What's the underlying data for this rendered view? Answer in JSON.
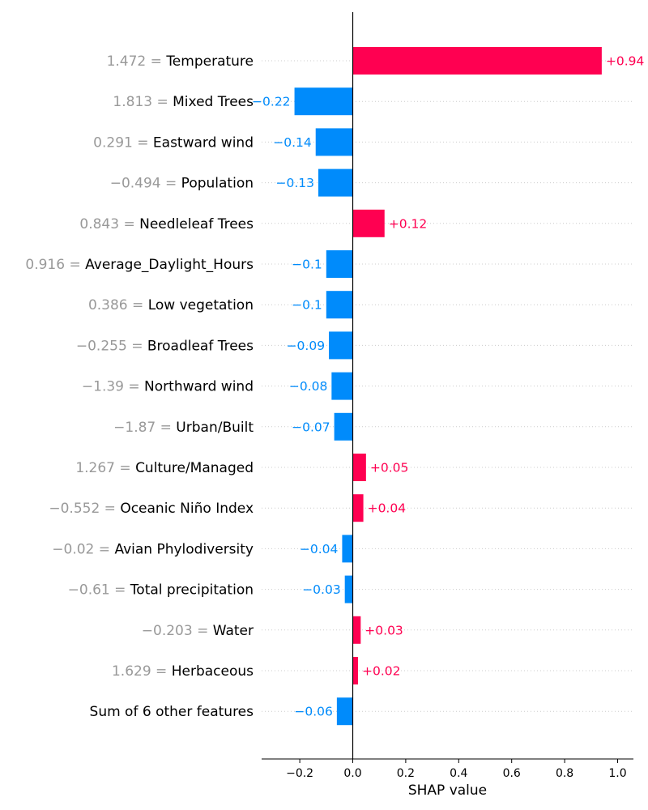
{
  "chart_data": {
    "type": "bar",
    "orientation": "horizontal",
    "xlabel": "SHAP value",
    "xlim": [
      -0.34,
      1.06
    ],
    "xticks": [
      -0.2,
      0.0,
      0.2,
      0.4,
      0.6,
      0.8,
      1.0
    ],
    "xtick_labels": [
      "−0.2",
      "0.0",
      "0.2",
      "0.4",
      "0.6",
      "0.8",
      "1.0"
    ],
    "grid": "dotted horizontal row lines",
    "colors": {
      "positive": "#ff0051",
      "negative": "#008bfb",
      "feature_value": "#999999"
    },
    "features": [
      {
        "value_text": "1.472",
        "name": "Temperature",
        "shap": 0.94,
        "label": "+0.94"
      },
      {
        "value_text": "1.813",
        "name": "Mixed Trees",
        "shap": -0.22,
        "label": "−0.22"
      },
      {
        "value_text": "0.291",
        "name": "Eastward wind",
        "shap": -0.14,
        "label": "−0.14"
      },
      {
        "value_text": "−0.494",
        "name": "Population",
        "shap": -0.13,
        "label": "−0.13"
      },
      {
        "value_text": "0.843",
        "name": "Needleleaf Trees",
        "shap": 0.12,
        "label": "+0.12"
      },
      {
        "value_text": "0.916",
        "name": "Average_Daylight_Hours",
        "shap": -0.1,
        "label": "−0.1"
      },
      {
        "value_text": "0.386",
        "name": "Low vegetation",
        "shap": -0.1,
        "label": "−0.1"
      },
      {
        "value_text": "−0.255",
        "name": "Broadleaf Trees",
        "shap": -0.09,
        "label": "−0.09"
      },
      {
        "value_text": "−1.39",
        "name": "Northward wind",
        "shap": -0.08,
        "label": "−0.08"
      },
      {
        "value_text": "−1.87",
        "name": "Urban/Built",
        "shap": -0.07,
        "label": "−0.07"
      },
      {
        "value_text": "1.267",
        "name": "Culture/Managed",
        "shap": 0.05,
        "label": "+0.05"
      },
      {
        "value_text": "−0.552",
        "name": "Oceanic Niño Index",
        "shap": 0.04,
        "label": "+0.04"
      },
      {
        "value_text": "−0.02",
        "name": "Avian Phylodiversity",
        "shap": -0.04,
        "label": "−0.04"
      },
      {
        "value_text": "−0.61",
        "name": "Total precipitation",
        "shap": -0.03,
        "label": "−0.03"
      },
      {
        "value_text": "−0.203",
        "name": "Water",
        "shap": 0.03,
        "label": "+0.03"
      },
      {
        "value_text": "1.629",
        "name": "Herbaceous",
        "shap": 0.02,
        "label": "+0.02"
      },
      {
        "value_text": "",
        "name": "Sum of 6 other features",
        "shap": -0.06,
        "label": "−0.06"
      }
    ]
  }
}
